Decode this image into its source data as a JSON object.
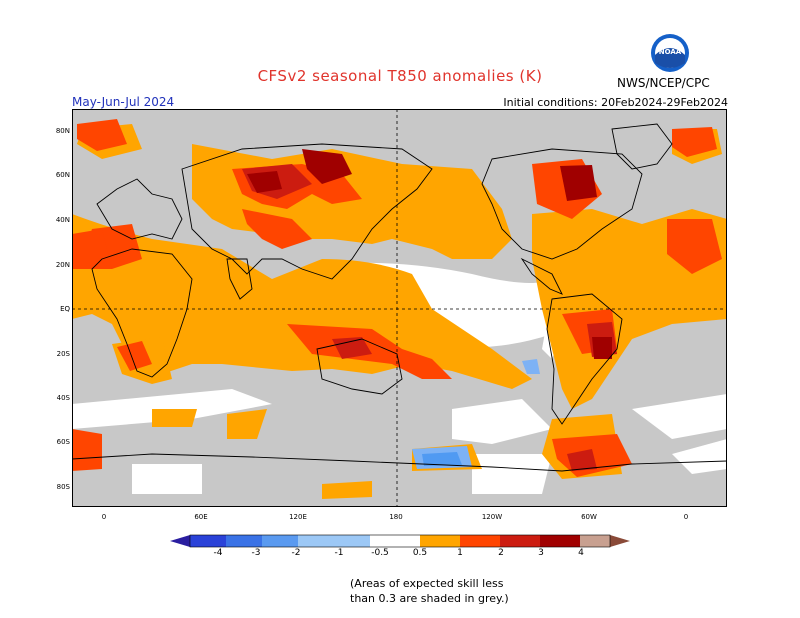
{
  "header": {
    "title": "CFSv2 seasonal T850 anomalies (K)",
    "period": "May-Jun-Jul 2024",
    "initial_conditions": "Initial conditions: 20Feb2024-29Feb2024",
    "organization": "NWS/NCEP/CPC",
    "logo_text": "NOAA"
  },
  "map": {
    "lat_labels": [
      "80N",
      "60N",
      "40N",
      "20N",
      "EQ",
      "20S",
      "40S",
      "60S",
      "80S"
    ],
    "lon_labels": [
      "0",
      "60E",
      "120E",
      "180",
      "120W",
      "60W",
      "0"
    ],
    "colors": {
      "grey": "#c8c8c8",
      "white": "#ffffff",
      "c_0_5_1": "#ffa500",
      "c_1_2": "#ff4500",
      "c_2_3": "#cc1c10",
      "c_3_4": "#a00000",
      "c_m0_5_m1": "#7db2f5",
      "c_m1_m2": "#509af2"
    }
  },
  "colorbar": {
    "labels": [
      "-4",
      "-3",
      "-2",
      "-1",
      "-0.5",
      "0.5",
      "1",
      "2",
      "3",
      "4"
    ],
    "colors": [
      "#2a1ea0",
      "#2a42d8",
      "#3a72e6",
      "#5a9af0",
      "#9cc8f6",
      "#ffffff",
      "#ffa500",
      "#ff4500",
      "#cc1c10",
      "#a00000",
      "#c8a090",
      "#8a4a38"
    ]
  },
  "note": {
    "line1": "(Areas of expected skill less",
    "line2": "than 0.3 are shaded in grey.)"
  }
}
